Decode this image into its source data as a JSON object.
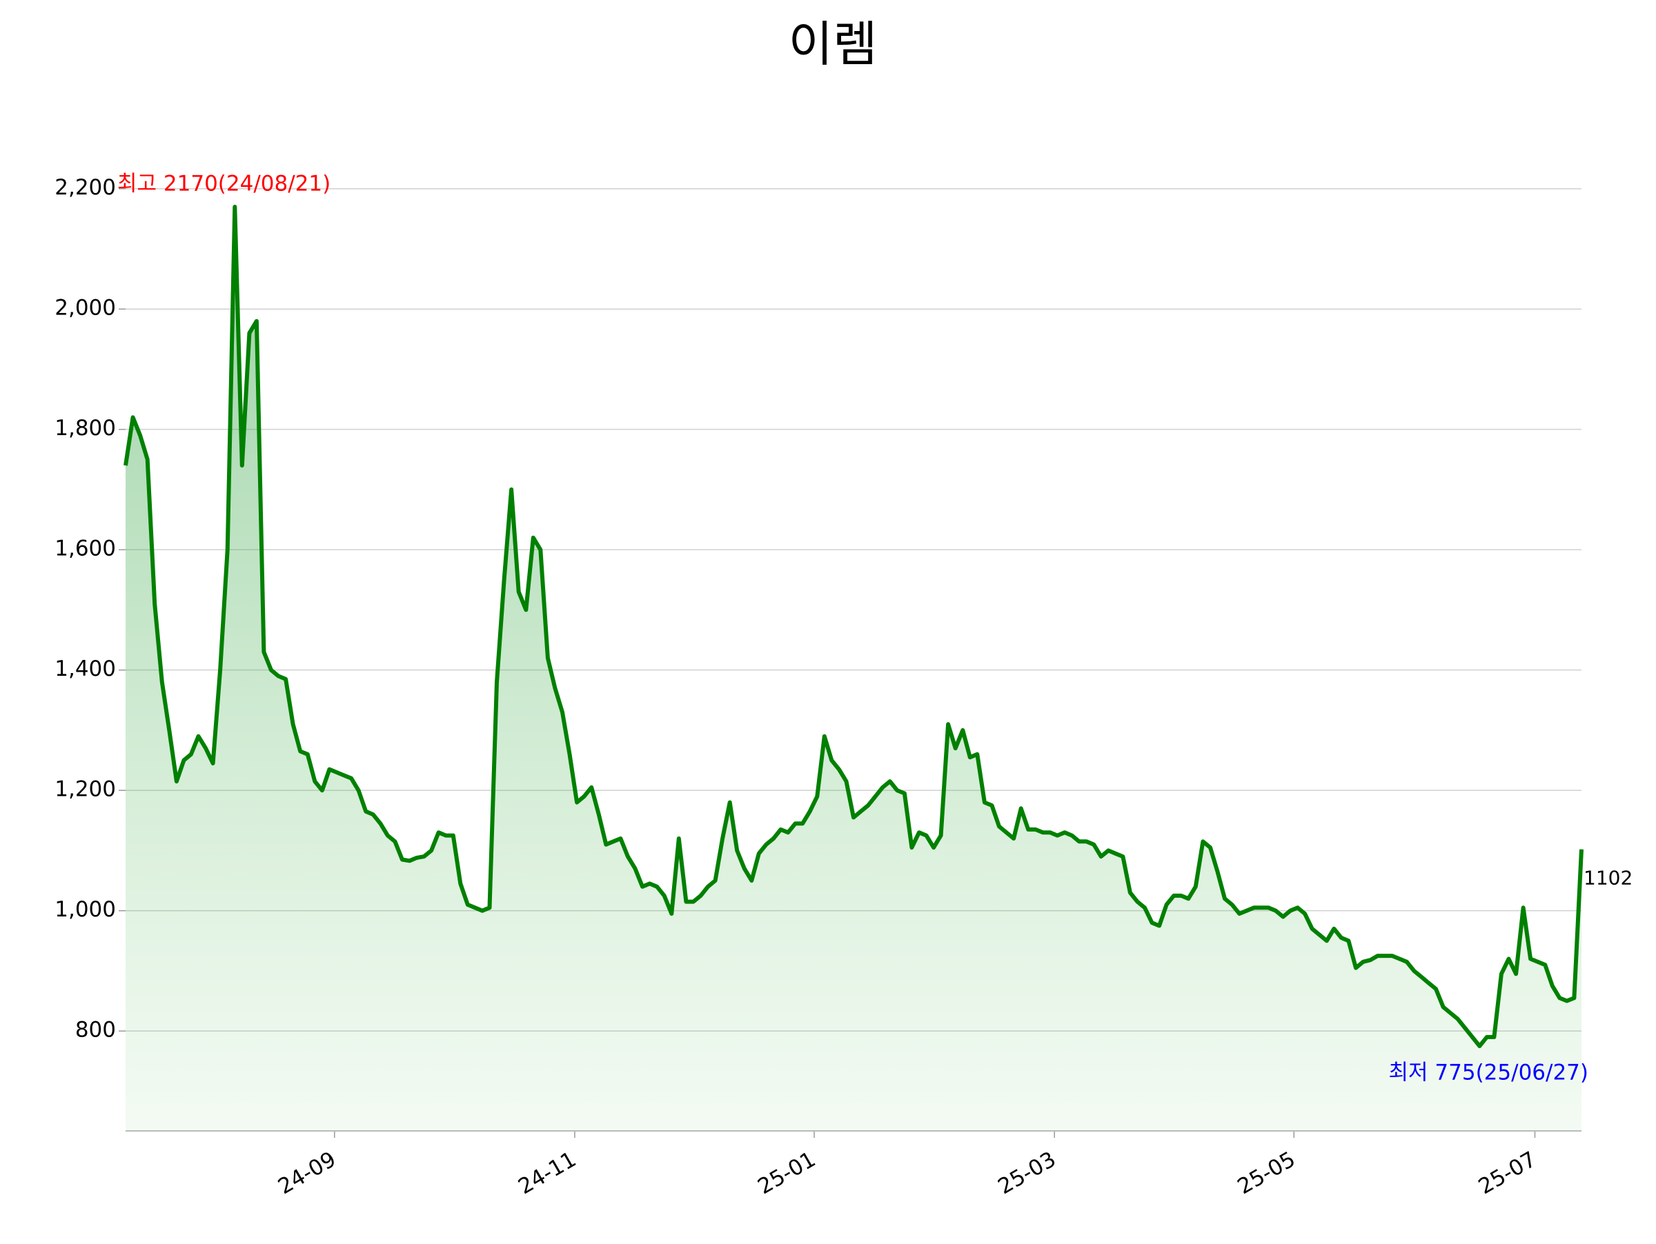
{
  "chart_data": {
    "type": "area-line",
    "title": "이렘",
    "color": "#008000",
    "values": [
      1740,
      1820,
      1790,
      1750,
      1510,
      1380,
      1300,
      1215,
      1250,
      1260,
      1290,
      1270,
      1245,
      1400,
      1600,
      2170,
      1740,
      1960,
      1980,
      1430,
      1400,
      1390,
      1385,
      1310,
      1265,
      1260,
      1215,
      1200,
      1235,
      1230,
      1225,
      1220,
      1200,
      1165,
      1160,
      1145,
      1125,
      1115,
      1085,
      1083,
      1088,
      1090,
      1100,
      1130,
      1125,
      1125,
      1045,
      1010,
      1005,
      1000,
      1005,
      1380,
      1550,
      1700,
      1530,
      1500,
      1620,
      1600,
      1420,
      1370,
      1330,
      1260,
      1180,
      1190,
      1205,
      1160,
      1110,
      1115,
      1120,
      1090,
      1070,
      1040,
      1045,
      1040,
      1025,
      995,
      1120,
      1015,
      1015,
      1025,
      1040,
      1050,
      1120,
      1180,
      1100,
      1070,
      1050,
      1095,
      1110,
      1120,
      1135,
      1130,
      1145,
      1145,
      1165,
      1190,
      1290,
      1250,
      1235,
      1215,
      1155,
      1165,
      1175,
      1190,
      1205,
      1215,
      1200,
      1195,
      1105,
      1130,
      1125,
      1105,
      1125,
      1310,
      1270,
      1300,
      1255,
      1260,
      1180,
      1175,
      1140,
      1130,
      1120,
      1170,
      1135,
      1135,
      1130,
      1130,
      1125,
      1130,
      1125,
      1115,
      1115,
      1110,
      1090,
      1100,
      1095,
      1090,
      1030,
      1015,
      1005,
      980,
      975,
      1010,
      1025,
      1025,
      1020,
      1040,
      1115,
      1105,
      1065,
      1020,
      1010,
      995,
      1000,
      1005,
      1005,
      1005,
      1000,
      990,
      1000,
      1005,
      995,
      970,
      960,
      950,
      970,
      955,
      950,
      905,
      915,
      918,
      925,
      925,
      925,
      920,
      915,
      900,
      890,
      880,
      870,
      840,
      830,
      820,
      805,
      790,
      775,
      790,
      790,
      895,
      920,
      895,
      1005,
      920,
      915,
      910,
      875,
      855,
      850,
      855,
      1102
    ],
    "xlim": [
      0,
      200
    ],
    "xticks": [
      {
        "value": 28.7,
        "label": "24-09"
      },
      {
        "value": 61.7,
        "label": "24-11"
      },
      {
        "value": 94.6,
        "label": "25-01"
      },
      {
        "value": 127.6,
        "label": "25-03"
      },
      {
        "value": 160.5,
        "label": "25-05"
      },
      {
        "value": 193.6,
        "label": "25-07"
      }
    ],
    "ylim": [
      634,
      2273
    ],
    "yticks": [
      {
        "value": 800,
        "label": "800"
      },
      {
        "value": 1000,
        "label": "1,000"
      },
      {
        "value": 1200,
        "label": "1,200"
      },
      {
        "value": 1400,
        "label": "1,400"
      },
      {
        "value": 1600,
        "label": "1,600"
      },
      {
        "value": 1800,
        "label": "1,800"
      },
      {
        "value": 2000,
        "label": "2,000"
      },
      {
        "value": 2200,
        "label": "2,200"
      }
    ],
    "grid": true,
    "annotations": [
      {
        "text": "최고 2170(24/08/21)",
        "color": "#ff0000"
      },
      {
        "text": "최저 775(25/06/27)",
        "color": "#0000ff"
      }
    ]
  }
}
